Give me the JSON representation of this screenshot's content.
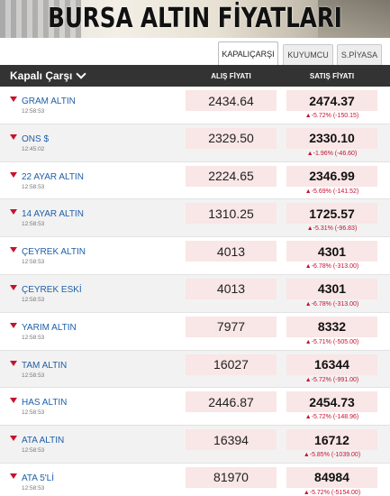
{
  "banner": {
    "title": "BURSA ALTIN FİYATLARI"
  },
  "tabs": [
    {
      "label": "KAPALIÇARŞI",
      "active": true
    },
    {
      "label": "KUYUMCU",
      "active": false
    },
    {
      "label": "S.PİYASA",
      "active": false
    }
  ],
  "header": {
    "name": "Kapalı Çarşı",
    "buy": "ALIŞ FİYATI",
    "sell": "SATIŞ FİYATI"
  },
  "colors": {
    "header_bg": "#333333",
    "price_bg": "#f9e6e6",
    "down": "#c8102e",
    "link": "#1d5fa8"
  },
  "rows": [
    {
      "name": "GRAM ALTIN",
      "time": "12:58:53",
      "buy": "2434.64",
      "sell": "2474.37",
      "change": "▲-5.72% (-150.15)",
      "icon": "down-arrow-icon"
    },
    {
      "name": "ONS $",
      "time": "12:45:02",
      "buy": "2329.50",
      "sell": "2330.10",
      "change": "▲-1.96% (-46.60)",
      "icon": "down-arrow-icon"
    },
    {
      "name": "22 AYAR ALTIN",
      "time": "12:58:53",
      "buy": "2224.65",
      "sell": "2346.99",
      "change": "▲-5.69% (-141.52)",
      "icon": "down-arrow-icon"
    },
    {
      "name": "14 AYAR ALTIN",
      "time": "12:58:53",
      "buy": "1310.25",
      "sell": "1725.57",
      "change": "▲-5.31% (-96.83)",
      "icon": "down-arrow-icon"
    },
    {
      "name": "ÇEYREK ALTIN",
      "time": "12:58:53",
      "buy": "4013",
      "sell": "4301",
      "change": "▲-6.78% (-313.00)",
      "icon": "down-arrow-icon"
    },
    {
      "name": "ÇEYREK ESKİ",
      "time": "12:58:53",
      "buy": "4013",
      "sell": "4301",
      "change": "▲-6.78% (-313.00)",
      "icon": "down-arrow-icon"
    },
    {
      "name": "YARIM ALTIN",
      "time": "12:58:53",
      "buy": "7977",
      "sell": "8332",
      "change": "▲-5.71% (-505.00)",
      "icon": "down-arrow-icon"
    },
    {
      "name": "TAM ALTIN",
      "time": "12:58:53",
      "buy": "16027",
      "sell": "16344",
      "change": "▲-5.72% (-991.00)",
      "icon": "down-arrow-icon"
    },
    {
      "name": "HAS ALTIN",
      "time": "12:58:53",
      "buy": "2446.87",
      "sell": "2454.73",
      "change": "▲-5.72% (-148.96)",
      "icon": "down-arrow-icon"
    },
    {
      "name": "ATA ALTIN",
      "time": "12:58:53",
      "buy": "16394",
      "sell": "16712",
      "change": "▲-5.85% (-1039.00)",
      "icon": "down-arrow-icon"
    },
    {
      "name": "ATA 5'Lİ",
      "time": "12:58:53",
      "buy": "81970",
      "sell": "84984",
      "change": "▲-5.72% (-5154.00)",
      "icon": "down-arrow-icon"
    }
  ]
}
